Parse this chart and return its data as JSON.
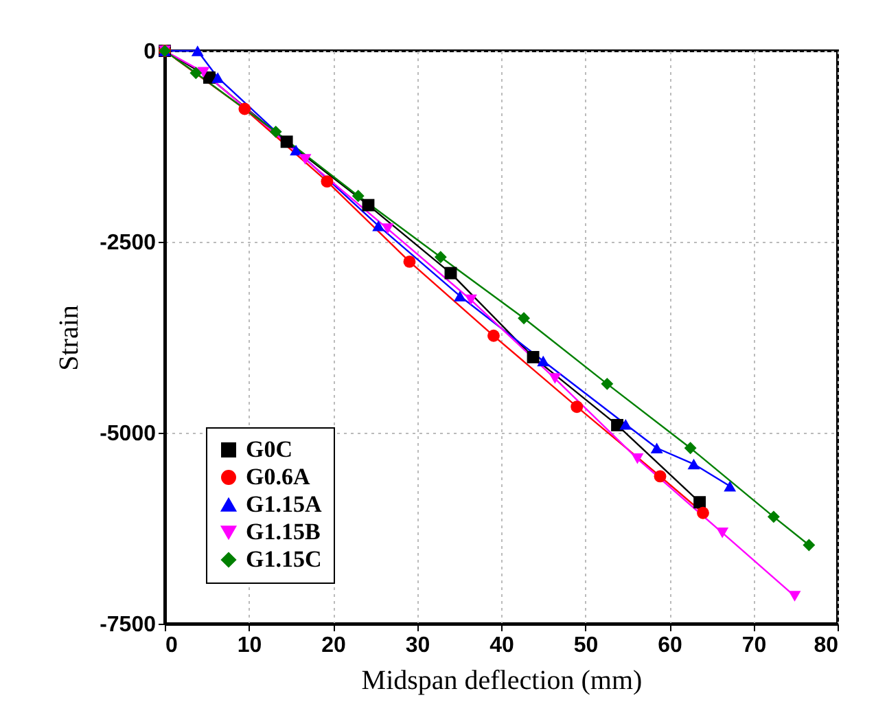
{
  "chart_data": {
    "type": "line",
    "xlabel": "Midspan deflection (mm)",
    "ylabel": "Strain",
    "xlim": [
      0,
      80
    ],
    "xticks": [
      0,
      10,
      20,
      30,
      40,
      50,
      60,
      70,
      80
    ],
    "ylim": [
      -7500,
      0
    ],
    "yticks": [
      {
        "value": -7500,
        "label": "-7500"
      },
      {
        "value": -5000,
        "label": "-5000"
      },
      {
        "value": -2500,
        "label": "-2500"
      },
      0
    ],
    "grid": true,
    "legend": "bottom left",
    "line_style": "solid",
    "series": [
      {
        "name": "G0C",
        "color": "#000000",
        "marker": "square",
        "x": [
          0,
          5.3,
          14.5,
          24.2,
          34,
          43.8,
          53.8,
          63.6
        ],
        "values": [
          0,
          -350,
          -1190,
          -2020,
          -2910,
          -4010,
          -4900,
          -5910
        ]
      },
      {
        "name": "G0.6A",
        "color": "#ff0000",
        "marker": "circle",
        "x": [
          0,
          9.5,
          19.3,
          29.1,
          39.1,
          49,
          58.9,
          64
        ],
        "values": [
          0,
          -760,
          -1710,
          -2760,
          -3730,
          -4660,
          -5570,
          -6050
        ]
      },
      {
        "name": "G1.15A",
        "color": "#0000ff",
        "marker": "triangle",
        "x": [
          0,
          3.9,
          6.3,
          15.6,
          25.4,
          35.1,
          45,
          54.8,
          58.5,
          62.9,
          67.2
        ],
        "values": [
          0,
          0,
          -350,
          -1300,
          -2290,
          -3210,
          -4060,
          -4890,
          -5200,
          -5410,
          -5700
        ]
      },
      {
        "name": "G1.15B",
        "color": "#ff00ff",
        "marker": "triangle-down",
        "x": [
          0,
          4.6,
          16.7,
          26.5,
          36.4,
          46.4,
          56.2,
          66.3,
          74.9
        ],
        "values": [
          0,
          -280,
          -1420,
          -2330,
          -3260,
          -4290,
          -5340,
          -6310,
          -7140
        ]
      },
      {
        "name": "G1.15C",
        "color": "#008000",
        "marker": "diamond",
        "x": [
          0,
          3.7,
          13.2,
          23,
          32.8,
          42.7,
          52.6,
          62.5,
          72.4,
          76.6
        ],
        "values": [
          0,
          -290,
          -1060,
          -1900,
          -2700,
          -3500,
          -4360,
          -5200,
          -6100,
          -6470
        ]
      }
    ]
  }
}
